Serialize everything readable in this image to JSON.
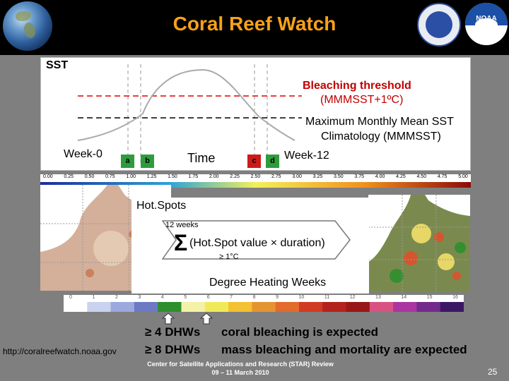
{
  "header": {
    "title": "Coral Reef Watch",
    "noaa_logo_text": "NOAA"
  },
  "sst_panel": {
    "sst_label": "SST",
    "bleaching_threshold_line1": "Bleaching threshold",
    "bleaching_threshold_line2": "(MMMSST+1ºC)",
    "climatology_line1": "Maximum Monthly Mean SST",
    "climatology_line2": "Climatology (MMMSST)",
    "week0": "Week-0",
    "time": "Time",
    "week12": "Week-12",
    "markers": [
      "a",
      "b",
      "c",
      "d"
    ]
  },
  "sst_scale_ticks": [
    "0.00",
    "0.25",
    "0.50",
    "0.75",
    "1.00",
    "1.25",
    "1.50",
    "1.75",
    "2.00",
    "2.25",
    "2.50",
    "2.75",
    "3.00",
    "3.25",
    "3.50",
    "3.75",
    "4.00",
    "4.25",
    "4.50",
    "4.75",
    "5.00"
  ],
  "hotspots": {
    "title": "Hot.Spots",
    "weeks": "12 weeks",
    "sigma": "Σ",
    "formula": "(Hot.Spot value × duration)",
    "condition": "≥ 1°C",
    "dhw_title": "Degree Heating Weeks"
  },
  "dhw_scale_ticks": [
    "0",
    "1",
    "2",
    "3",
    "4",
    "5",
    "6",
    "7",
    "8",
    "9",
    "10",
    "11",
    "12",
    "13",
    "14",
    "15",
    "16"
  ],
  "dhw_scale_colors": [
    "#ffffff",
    "#c9d2ef",
    "#9ba9dc",
    "#6c79c5",
    "#2d8f2d",
    "#f4f2a8",
    "#f0ea5a",
    "#f3c132",
    "#e59432",
    "#e36b2c",
    "#d13a23",
    "#b4221d",
    "#9a1717",
    "#d85383",
    "#ab35a0",
    "#732a8c",
    "#3c1763"
  ],
  "interpretation": {
    "line1_threshold": "≥ 4 DHWs",
    "line1_text": "coral bleaching is expected",
    "line2_threshold": "≥ 8 DHWs",
    "line2_text": "mass bleaching and mortality are expected"
  },
  "footer": {
    "url": "http://coralreefwatch.noaa.gov",
    "org": "Center for Satellite Applications and Research (STAR) Review",
    "dates": "09 – 11 March 2010",
    "page": "25"
  }
}
